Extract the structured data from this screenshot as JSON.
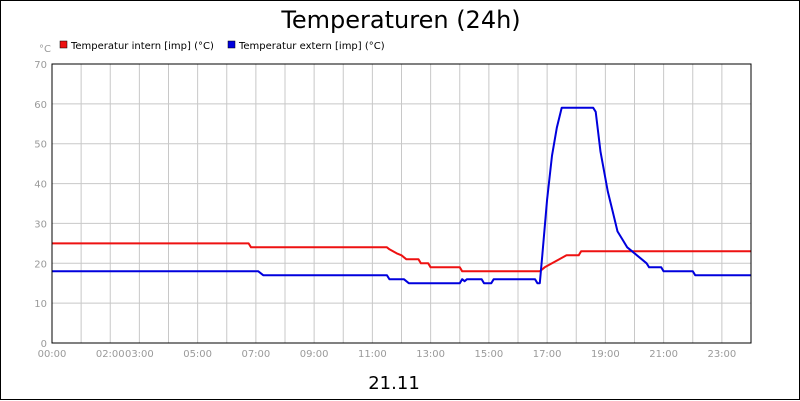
{
  "chart_data": {
    "type": "line",
    "title": "Temperaturen (24h)",
    "ylabel": "°C",
    "xlabel": "21.11",
    "ylim": [
      0,
      70
    ],
    "yticks": [
      0,
      10,
      20,
      30,
      40,
      50,
      60,
      70
    ],
    "xlim": [
      "00:00",
      "24:00"
    ],
    "xticks": [
      "00:00",
      "02:00",
      "03:00",
      "05:00",
      "07:00",
      "09:00",
      "11:00",
      "13:00",
      "15:00",
      "17:00",
      "19:00",
      "21:00",
      "23:00"
    ],
    "grid": true,
    "legend_position": "top-left",
    "series": [
      {
        "name": "Temperatur intern [imp] (°C)",
        "color": "#ee1111",
        "points": [
          [
            "00:00",
            25
          ],
          [
            "06:45",
            25
          ],
          [
            "06:50",
            24
          ],
          [
            "11:30",
            24
          ],
          [
            "11:35",
            23.5
          ],
          [
            "11:50",
            22.5
          ],
          [
            "12:00",
            22
          ],
          [
            "12:10",
            21
          ],
          [
            "12:35",
            21
          ],
          [
            "12:40",
            20
          ],
          [
            "12:55",
            20
          ],
          [
            "13:00",
            19
          ],
          [
            "14:00",
            19
          ],
          [
            "14:05",
            18
          ],
          [
            "16:45",
            18
          ],
          [
            "16:55",
            19
          ],
          [
            "17:10",
            20
          ],
          [
            "17:25",
            21
          ],
          [
            "17:40",
            22
          ],
          [
            "18:05",
            22
          ],
          [
            "18:10",
            23
          ],
          [
            "24:00",
            23
          ]
        ]
      },
      {
        "name": "Temperatur extern [imp] (°C)",
        "color": "#0000dd",
        "points": [
          [
            "00:00",
            18
          ],
          [
            "07:05",
            18
          ],
          [
            "07:15",
            17
          ],
          [
            "11:30",
            17
          ],
          [
            "11:35",
            16
          ],
          [
            "12:05",
            16
          ],
          [
            "12:15",
            15
          ],
          [
            "14:00",
            15
          ],
          [
            "14:05",
            16
          ],
          [
            "14:10",
            15.5
          ],
          [
            "14:15",
            16
          ],
          [
            "14:45",
            16
          ],
          [
            "14:50",
            15
          ],
          [
            "15:05",
            15
          ],
          [
            "15:10",
            16
          ],
          [
            "16:35",
            16
          ],
          [
            "16:40",
            15
          ],
          [
            "16:45",
            15
          ],
          [
            "16:50",
            22
          ],
          [
            "17:00",
            36
          ],
          [
            "17:10",
            47
          ],
          [
            "17:20",
            54
          ],
          [
            "17:30",
            59
          ],
          [
            "18:35",
            59
          ],
          [
            "18:40",
            58
          ],
          [
            "18:50",
            48
          ],
          [
            "19:05",
            38
          ],
          [
            "19:15",
            33
          ],
          [
            "19:25",
            28
          ],
          [
            "19:35",
            26
          ],
          [
            "19:45",
            24
          ],
          [
            "19:55",
            23
          ],
          [
            "20:05",
            22
          ],
          [
            "20:15",
            21
          ],
          [
            "20:25",
            20
          ],
          [
            "20:30",
            19
          ],
          [
            "20:55",
            19
          ],
          [
            "21:00",
            18
          ],
          [
            "22:00",
            18
          ],
          [
            "22:05",
            17
          ],
          [
            "24:00",
            17
          ]
        ]
      }
    ]
  }
}
